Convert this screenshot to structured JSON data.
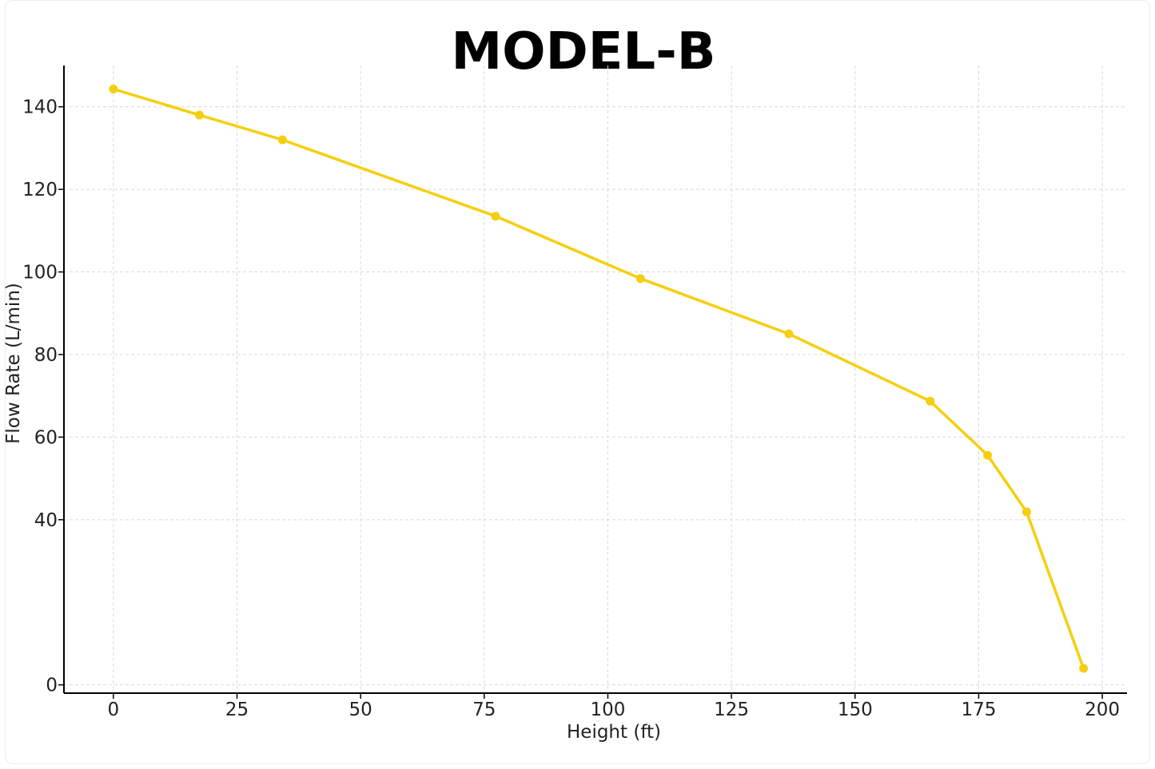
{
  "chart_data": {
    "type": "line",
    "title": "MODEL-B",
    "xlabel": "Height (ft)",
    "ylabel": "Flow Rate (L/min)",
    "xlim": [
      -10,
      205
    ],
    "ylim": [
      -2,
      150
    ],
    "xticks": [
      0,
      25,
      50,
      75,
      100,
      125,
      150,
      175,
      200
    ],
    "yticks": [
      0,
      40,
      60,
      80,
      100,
      120,
      140
    ],
    "grid": true,
    "color": "#f5cf0f",
    "series": [
      {
        "x": [
          0,
          17.4,
          34.2,
          77.3,
          106.6,
          136.6,
          165.2,
          176.8,
          184.7,
          196.2
        ],
        "y": [
          144.3,
          138.0,
          132.0,
          113.5,
          98.4,
          85.0,
          68.7,
          55.6,
          41.9,
          4.0
        ]
      }
    ]
  }
}
